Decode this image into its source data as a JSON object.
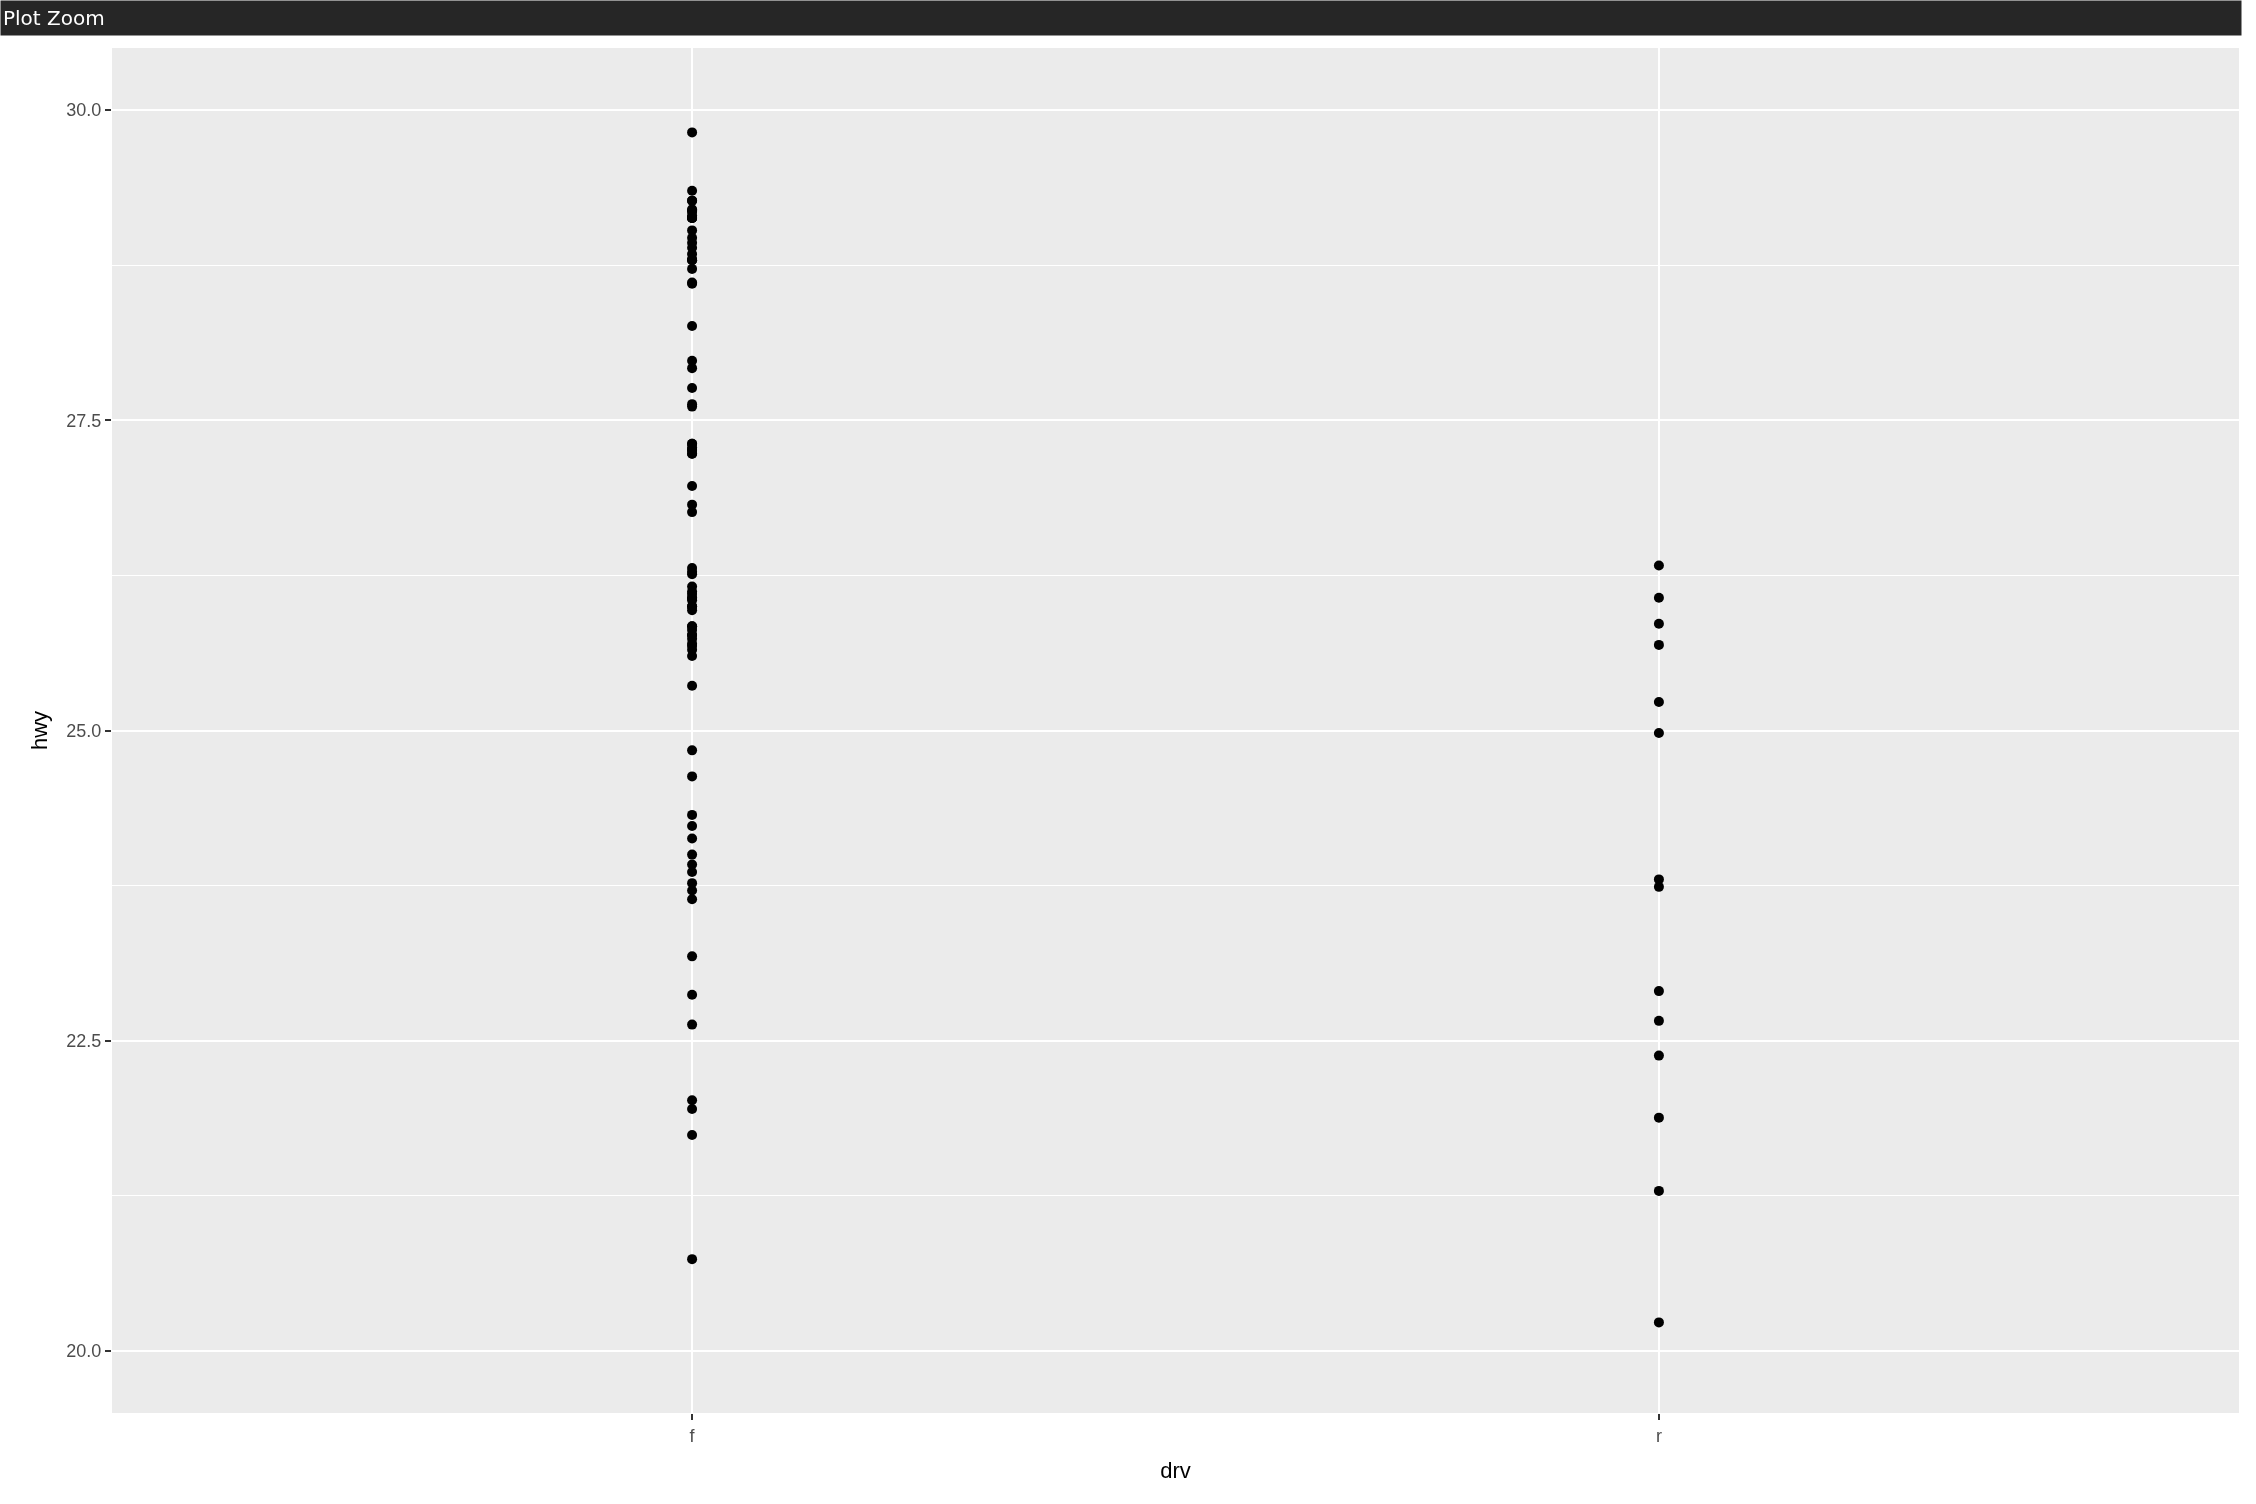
{
  "chart_data": {
    "type": "scatter",
    "xlabel": "drv",
    "ylabel": "hwy",
    "annotations": [
      "Plot Zoom"
    ],
    "categories": [
      "f",
      "r"
    ],
    "series": [
      {
        "color": "#000000",
        "x": [
          "f",
          "f",
          "f",
          "f",
          "f",
          "f",
          "f",
          "f",
          "f",
          "f",
          "f",
          "f",
          "f",
          "f",
          "f",
          "f",
          "f",
          "f",
          "f",
          "f",
          "f",
          "f",
          "f",
          "f",
          "f",
          "f",
          "f",
          "f",
          "f",
          "f",
          "f",
          "f",
          "f",
          "f",
          "f",
          "f",
          "f",
          "f",
          "f",
          "f",
          "f",
          "f",
          "f",
          "f",
          "f",
          "f",
          "f",
          "f",
          "f",
          "f",
          "f",
          "f",
          "f",
          "f",
          "f",
          "f",
          "f",
          "f",
          "f",
          "f",
          "f",
          "f",
          "f",
          "f",
          "f",
          "f",
          "f",
          "f",
          "f",
          "f",
          "f",
          "f",
          "f",
          "f",
          "f",
          "f",
          "f",
          "f",
          "f",
          "f",
          "r",
          "r",
          "r",
          "r",
          "r",
          "r",
          "r",
          "r",
          "r",
          "r",
          "r",
          "r",
          "r",
          "r"
        ],
        "values": [
          29.82,
          29.13,
          29.13,
          29.13,
          29.2,
          29.18,
          29.35,
          29.13,
          29.19,
          29.27,
          29.27,
          29.15,
          29.03,
          28.97,
          28.79,
          28.79,
          28.61,
          28.84,
          28.72,
          28.6,
          28.89,
          28.93,
          28.8,
          28.26,
          27.98,
          27.76,
          27.92,
          27.63,
          27.61,
          27.26,
          27.28,
          27.23,
          27.26,
          27.31,
          27.31,
          27.23,
          26.97,
          26.82,
          26.76,
          26.28,
          26.31,
          26.26,
          26.16,
          26.07,
          25.97,
          26.07,
          26.0,
          25.77,
          25.84,
          25.84,
          25.68,
          25.77,
          25.74,
          25.65,
          25.7,
          25.81,
          25.6,
          26.05,
          26.1,
          26.0,
          26.12,
          25.36,
          24.84,
          24.63,
          24.32,
          24.23,
          24.0,
          23.92,
          24.13,
          23.86,
          23.77,
          23.71,
          23.64,
          23.18,
          22.87,
          22.63,
          22.02,
          21.95,
          21.74,
          20.74,
          26.33,
          26.07,
          25.86,
          25.69,
          25.23,
          24.98,
          23.8,
          23.74,
          22.9,
          22.66,
          22.38,
          21.88,
          21.29,
          20.23
        ]
      }
    ],
    "marker": "circle",
    "ylim": [
      19.5,
      30.5
    ],
    "yticks": [
      {
        "value": 20,
        "label": "20.0"
      },
      {
        "value": 22.5,
        "label": "22.5"
      },
      {
        "value": 25,
        "label": "25.0"
      },
      {
        "value": 27.5,
        "label": "27.5"
      },
      {
        "value": 30,
        "label": "30.0"
      }
    ],
    "grid": true
  }
}
